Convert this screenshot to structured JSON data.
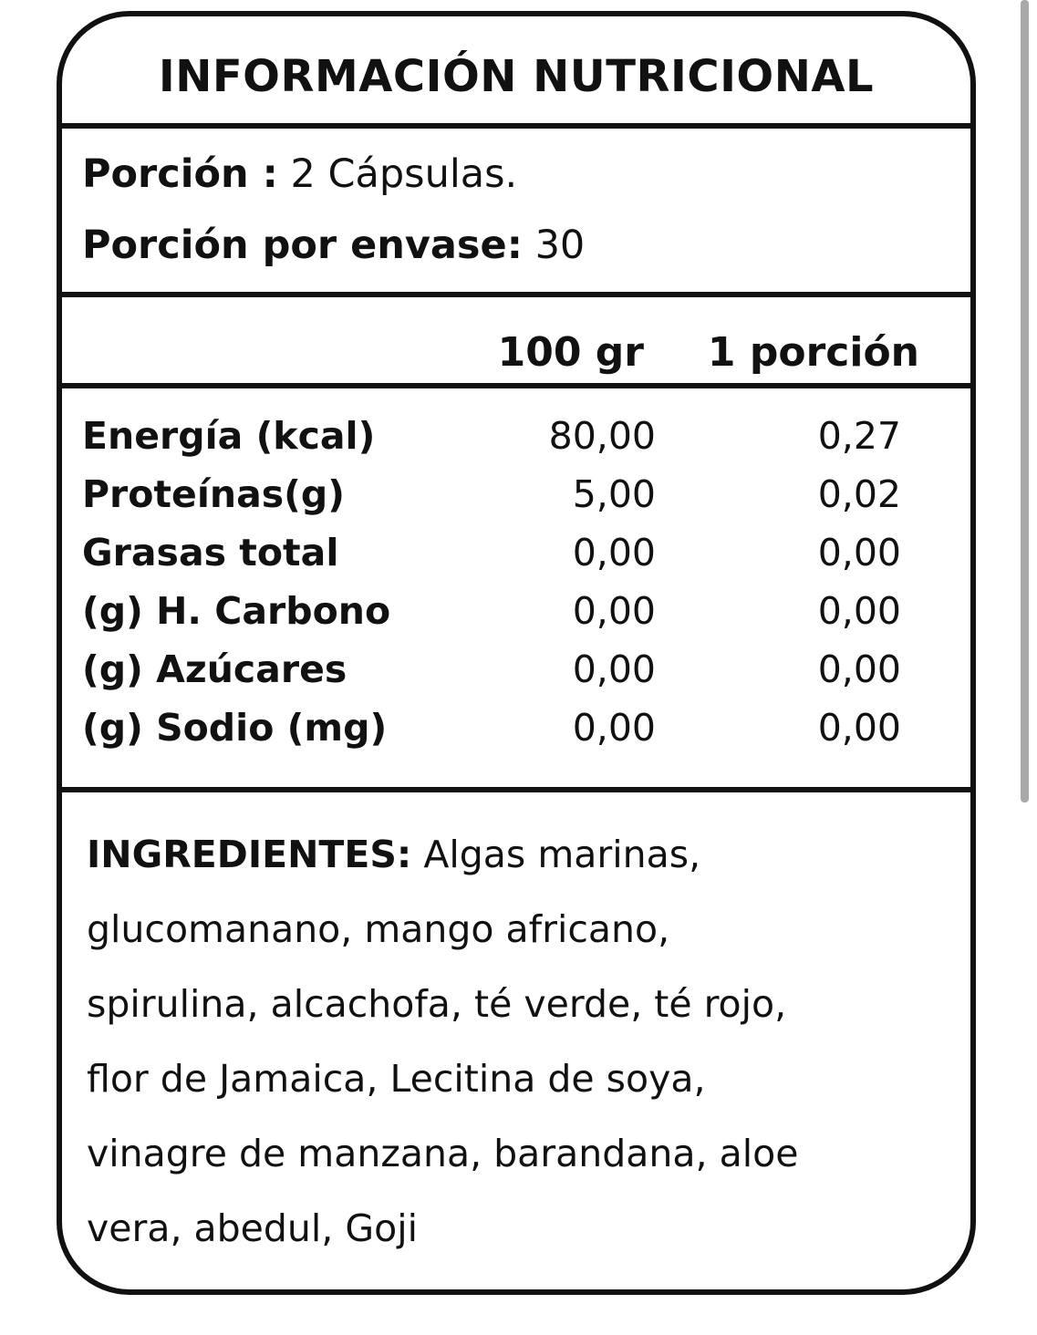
{
  "title": "INFORMACIÓN NUTRICIONAL",
  "serving": {
    "portion_label": "Porción :",
    "portion_value": "2 Cápsulas.",
    "per_container_label": "Porción por envase:",
    "per_container_value": "30"
  },
  "columns": [
    "100 gr",
    "1 porción"
  ],
  "nutrients": [
    {
      "label": "Energía (kcal)",
      "per100": "80,00",
      "per_portion": "0,27"
    },
    {
      "label": "Proteínas(g)",
      "per100": "5,00",
      "per_portion": "0,02"
    },
    {
      "label": "Grasas total",
      "per100": "0,00",
      "per_portion": "0,00"
    },
    {
      "label": "(g) H. Carbono",
      "per100": "0,00",
      "per_portion": "0,00"
    },
    {
      "label": "(g) Azúcares",
      "per100": "0,00",
      "per_portion": "0,00"
    },
    {
      "label": "(g) Sodio (mg)",
      "per100": "0,00",
      "per_portion": "0,00"
    }
  ],
  "ingredients": {
    "label": "INGREDIENTES:",
    "lines": [
      " Algas marinas,",
      "glucomanano, mango africano,",
      "spirulina, alcachofa, té verde, té rojo,",
      "flor de Jamaica, Lecitina de soya,",
      "vinagre de manzana, barandana, aloe",
      "vera, abedul, Goji"
    ]
  },
  "colors": {
    "border": "#111111",
    "scrollbar": "#a9a9a9"
  }
}
